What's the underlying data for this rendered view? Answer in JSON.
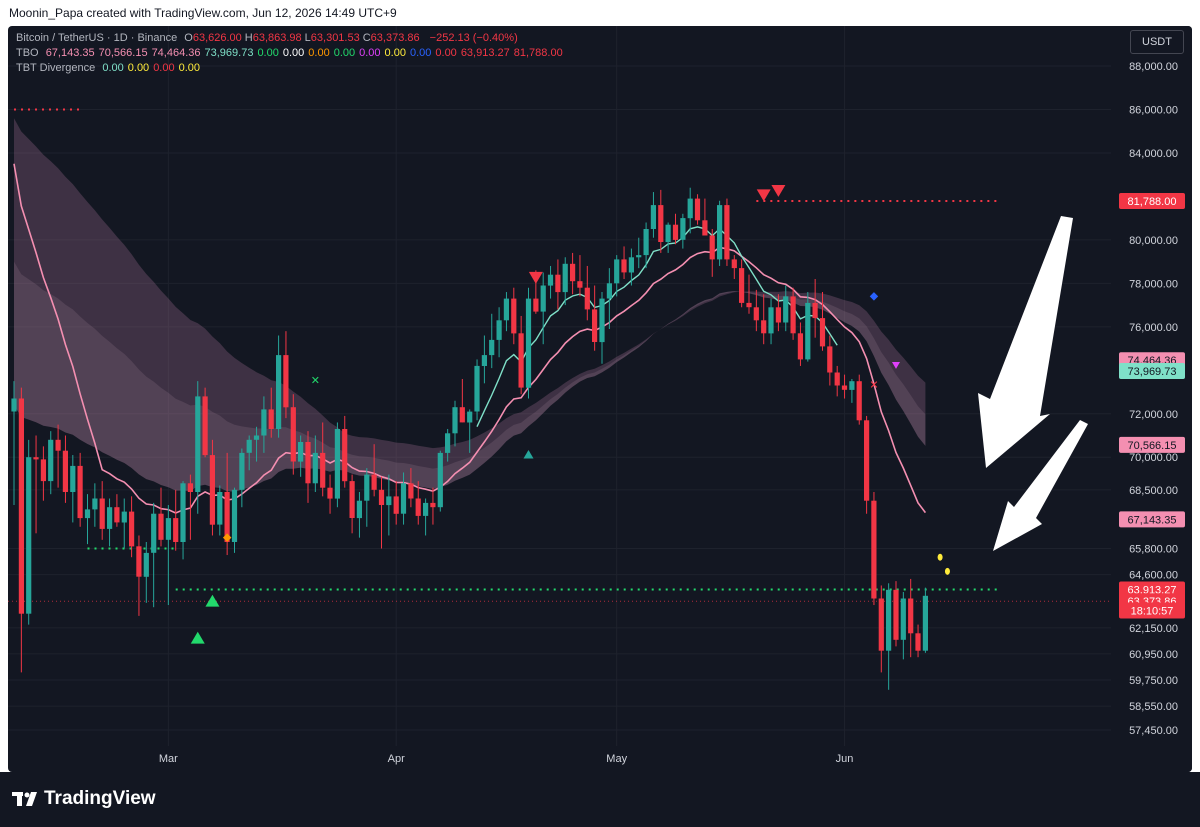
{
  "header": {
    "attribution": "Moonin_Papa created with TradingView.com, Jun 12, 2026 14:49 UTC+9"
  },
  "legend": {
    "symbol": "Bitcoin / TetherUS · 1D · Binance",
    "ohlc": [
      {
        "label": "O",
        "value": "63,626.00"
      },
      {
        "label": "H",
        "value": "63,863.98"
      },
      {
        "label": "L",
        "value": "63,301.53"
      },
      {
        "label": "C",
        "value": "63,373.86"
      }
    ],
    "change": "−252.13 (−0.40%)",
    "tbo_name": "TBO",
    "tbo_values": [
      {
        "v": "67,143.35",
        "color": "#f48fb1"
      },
      {
        "v": "70,566.15",
        "color": "#f48fb1"
      },
      {
        "v": "74,464.36",
        "color": "#f48fb1"
      },
      {
        "v": "73,969.73",
        "color": "#7fe0c8"
      },
      {
        "v": "0.00",
        "color": "#22d96c"
      },
      {
        "v": "0.00",
        "color": "#ffffff"
      },
      {
        "v": "0.00",
        "color": "#ff9800"
      },
      {
        "v": "0.00",
        "color": "#22d96c"
      },
      {
        "v": "0.00",
        "color": "#e040fb"
      },
      {
        "v": "0.00",
        "color": "#ffeb3b"
      },
      {
        "v": "0.00",
        "color": "#2962ff"
      },
      {
        "v": "0.00",
        "color": "#f23645"
      },
      {
        "v": "63,913.27",
        "color": "#f23645"
      },
      {
        "v": "81,788.00",
        "color": "#f23645"
      }
    ],
    "tbt_name": "TBT Divergence",
    "tbt_values": [
      {
        "v": "0.00",
        "color": "#7fe0c8"
      },
      {
        "v": "0.00",
        "color": "#ffeb3b"
      },
      {
        "v": "0.00",
        "color": "#f23645"
      },
      {
        "v": "0.00",
        "color": "#ffeb3b"
      }
    ]
  },
  "currency_button": "USDT",
  "footer": {
    "brand": "TradingView"
  },
  "colors": {
    "up": "#26a69a",
    "down": "#f23645",
    "background": "#131722",
    "grid": "#1e222d",
    "axis_text": "#d1d4dc"
  },
  "chart_data": {
    "type": "candlestick",
    "ylim": [
      56700,
      89300
    ],
    "y_ticks": [
      57450,
      58550,
      59750,
      60950,
      62150,
      64600,
      65800,
      68500,
      70000,
      72000,
      76000,
      78000,
      80000,
      84000,
      86000,
      88000
    ],
    "y_tick_labels": [
      "57,450.00",
      "58,550.00",
      "59,750.00",
      "60,950.00",
      "62,150.00",
      "64,600.00",
      "65,800.00",
      "68,500.00",
      "70,000.00",
      "72,000.00",
      "76,000.00",
      "78,000.00",
      "80,000.00",
      "84,000.00",
      "86,000.00",
      "88,000.00"
    ],
    "x_labels": [
      {
        "label": "Mar",
        "index": 21
      },
      {
        "label": "Apr",
        "index": 52
      },
      {
        "label": "May",
        "index": 82
      },
      {
        "label": "Jun",
        "index": 113
      }
    ],
    "candles_ohlc": [
      [
        72100,
        73500,
        67800,
        72700
      ],
      [
        72700,
        73200,
        60100,
        62800
      ],
      [
        62800,
        70800,
        62300,
        70000
      ],
      [
        70000,
        71000,
        66500,
        69900
      ],
      [
        69900,
        70500,
        68000,
        68900
      ],
      [
        68900,
        71200,
        68300,
        70800
      ],
      [
        70800,
        71500,
        68600,
        70300
      ],
      [
        70300,
        71000,
        67900,
        68400
      ],
      [
        68400,
        70100,
        67000,
        69600
      ],
      [
        69600,
        70200,
        66800,
        67200
      ],
      [
        67200,
        68300,
        66000,
        67600
      ],
      [
        67600,
        68800,
        66800,
        68100
      ],
      [
        68100,
        68900,
        66200,
        66700
      ],
      [
        66700,
        68100,
        65900,
        67700
      ],
      [
        67700,
        68300,
        66800,
        67000
      ],
      [
        67000,
        68100,
        65800,
        67500
      ],
      [
        67500,
        68200,
        65400,
        65900
      ],
      [
        65900,
        66400,
        62700,
        64500
      ],
      [
        64500,
        66100,
        63300,
        65600
      ],
      [
        65600,
        67900,
        63100,
        67400
      ],
      [
        67400,
        68600,
        65900,
        66200
      ],
      [
        66200,
        67800,
        63200,
        67200
      ],
      [
        67200,
        68500,
        65700,
        66100
      ],
      [
        66100,
        68900,
        65300,
        68800
      ],
      [
        68800,
        69200,
        66200,
        68400
      ],
      [
        68400,
        73500,
        67400,
        72800
      ],
      [
        72800,
        73200,
        70000,
        70100
      ],
      [
        70100,
        70800,
        66400,
        66900
      ],
      [
        66900,
        68700,
        66400,
        68400
      ],
      [
        68400,
        70200,
        65500,
        66100
      ],
      [
        66100,
        68600,
        65600,
        68500
      ],
      [
        68500,
        70400,
        67700,
        70200
      ],
      [
        70200,
        71000,
        69400,
        70800
      ],
      [
        70800,
        71400,
        69800,
        71000
      ],
      [
        71000,
        72800,
        70200,
        72200
      ],
      [
        72200,
        73200,
        70900,
        71300
      ],
      [
        71300,
        75600,
        70900,
        74700
      ],
      [
        74700,
        75800,
        71800,
        72300
      ],
      [
        72300,
        72900,
        69200,
        69800
      ],
      [
        69800,
        71000,
        69100,
        70700
      ],
      [
        70700,
        71200,
        67900,
        68800
      ],
      [
        68800,
        71000,
        68400,
        70200
      ],
      [
        70200,
        71600,
        68200,
        68600
      ],
      [
        68600,
        69200,
        67400,
        68100
      ],
      [
        68100,
        71600,
        67700,
        71300
      ],
      [
        71300,
        71900,
        68600,
        68900
      ],
      [
        68900,
        69200,
        66500,
        67200
      ],
      [
        67200,
        68400,
        66300,
        68000
      ],
      [
        68000,
        69500,
        66800,
        69200
      ],
      [
        69200,
        70600,
        68200,
        68500
      ],
      [
        68500,
        69100,
        65800,
        67800
      ],
      [
        67800,
        69200,
        66400,
        68200
      ],
      [
        68200,
        68900,
        66900,
        67400
      ],
      [
        67400,
        69300,
        66900,
        68800
      ],
      [
        68800,
        69500,
        67700,
        68100
      ],
      [
        68100,
        68900,
        66900,
        67300
      ],
      [
        67300,
        68100,
        66400,
        67900
      ],
      [
        67900,
        68600,
        66900,
        67700
      ],
      [
        67700,
        70300,
        67500,
        70200
      ],
      [
        70200,
        71300,
        69800,
        71100
      ],
      [
        71100,
        72600,
        70500,
        72300
      ],
      [
        72300,
        73600,
        71600,
        71600
      ],
      [
        71600,
        72200,
        70200,
        72100
      ],
      [
        72100,
        74500,
        71700,
        74200
      ],
      [
        74200,
        75600,
        73400,
        74700
      ],
      [
        74700,
        76600,
        74100,
        75400
      ],
      [
        75400,
        76900,
        74600,
        76300
      ],
      [
        76300,
        77600,
        75800,
        77300
      ],
      [
        77300,
        77800,
        75200,
        75700
      ],
      [
        75700,
        76500,
        72900,
        73200
      ],
      [
        73200,
        77800,
        72700,
        77300
      ],
      [
        77300,
        78600,
        76600,
        76700
      ],
      [
        76700,
        78500,
        75200,
        77900
      ],
      [
        77900,
        78800,
        77300,
        78400
      ],
      [
        78400,
        79100,
        76800,
        77600
      ],
      [
        77600,
        79200,
        77000,
        78900
      ],
      [
        78900,
        79400,
        77500,
        78100
      ],
      [
        78100,
        79300,
        77400,
        77800
      ],
      [
        77800,
        78800,
        76300,
        76800
      ],
      [
        76800,
        77900,
        74900,
        75300
      ],
      [
        75300,
        77600,
        74300,
        77300
      ],
      [
        77300,
        78700,
        75900,
        78000
      ],
      [
        78000,
        79300,
        77400,
        79100
      ],
      [
        79100,
        79700,
        78200,
        78500
      ],
      [
        78500,
        79600,
        77900,
        79200
      ],
      [
        79200,
        80100,
        78700,
        79300
      ],
      [
        79300,
        80800,
        78700,
        80500
      ],
      [
        80500,
        82200,
        80100,
        81600
      ],
      [
        81600,
        82300,
        79400,
        79900
      ],
      [
        79900,
        80800,
        79400,
        80700
      ],
      [
        80700,
        81200,
        79800,
        80000
      ],
      [
        80000,
        81200,
        79600,
        81000
      ],
      [
        81000,
        82400,
        80300,
        81900
      ],
      [
        81900,
        82100,
        80700,
        80900
      ],
      [
        80900,
        81900,
        80600,
        80200
      ],
      [
        80200,
        80500,
        78300,
        79100
      ],
      [
        79100,
        81800,
        78800,
        81600
      ],
      [
        81600,
        81900,
        78800,
        79100
      ],
      [
        79100,
        79300,
        78200,
        78700
      ],
      [
        78700,
        79100,
        76900,
        77100
      ],
      [
        77100,
        78400,
        76600,
        76900
      ],
      [
        76900,
        77700,
        75800,
        76300
      ],
      [
        76300,
        77500,
        75200,
        75700
      ],
      [
        75700,
        77300,
        75200,
        76900
      ],
      [
        76900,
        77500,
        75800,
        76200
      ],
      [
        76200,
        77900,
        75800,
        77400
      ],
      [
        77400,
        77800,
        75400,
        75700
      ],
      [
        75700,
        76200,
        74200,
        74500
      ],
      [
        74500,
        77600,
        74400,
        77100
      ],
      [
        77100,
        78200,
        75500,
        76400
      ],
      [
        76400,
        77600,
        74900,
        75100
      ],
      [
        75100,
        75600,
        73300,
        73900
      ],
      [
        73900,
        74200,
        72800,
        73300
      ],
      [
        73300,
        73800,
        72700,
        73100
      ],
      [
        73100,
        73600,
        72500,
        73500
      ],
      [
        73500,
        73800,
        71500,
        71700
      ],
      [
        71700,
        71900,
        67400,
        68000
      ],
      [
        68000,
        68400,
        63200,
        63500
      ],
      [
        63500,
        64100,
        60100,
        61100
      ],
      [
        61100,
        64200,
        59300,
        63900
      ],
      [
        63900,
        64300,
        61300,
        61600
      ],
      [
        61600,
        63800,
        60700,
        63500
      ],
      [
        63500,
        64400,
        60800,
        61900
      ],
      [
        61900,
        62300,
        60800,
        61100
      ],
      [
        61100,
        64000,
        61000,
        63626
      ]
    ],
    "overlays": [
      {
        "name": "TBO",
        "note": "pink moving-average line (Tbo fast)",
        "last": 67143.35
      },
      {
        "name": "TBO",
        "note": "teal moving-average line",
        "last": 73969.73
      }
    ],
    "price_labels": [
      {
        "value": "81,788.00",
        "color": "#f23645",
        "price": 81788
      },
      {
        "value": "74,464.36",
        "color": "#f48fb1",
        "price": 74464.36
      },
      {
        "value": "73,969.73",
        "color": "#7fe0c8",
        "price": 73969.73
      },
      {
        "value": "70,566.15",
        "color": "#f48fb1",
        "price": 70566.15
      },
      {
        "value": "67,143.35",
        "color": "#f48fb1",
        "price": 67143.35
      },
      {
        "value": "63,913.27",
        "color": "#f23645",
        "price": 63913.27
      },
      {
        "value": "63,373.86",
        "color": "#f23645",
        "price": 63373.86
      },
      {
        "value": "18:10:57",
        "color": "#f23645",
        "price": 62950
      }
    ],
    "support_level": 63913.27,
    "resistance_level": 81788,
    "upper_level": 86000
  }
}
